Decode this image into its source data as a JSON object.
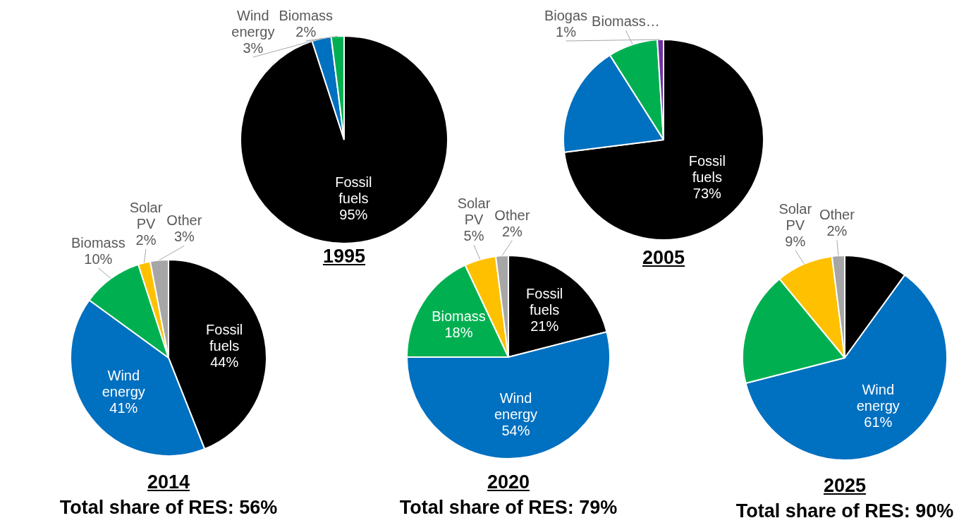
{
  "chart_data": [
    {
      "type": "pie",
      "title": "1995",
      "categories": [
        "Fossil fuels",
        "Wind energy",
        "Biomass"
      ],
      "values": [
        95,
        3,
        2
      ],
      "colors": [
        "#000000",
        "#0070c0",
        "#00b050"
      ],
      "value_labels": [
        "95%",
        "3%",
        "2%"
      ]
    },
    {
      "type": "pie",
      "title": "2005",
      "categories": [
        "Fossil fuels",
        null,
        "Biomass…",
        "Biogas"
      ],
      "values": [
        73,
        18,
        8,
        1
      ],
      "colors": [
        "#000000",
        "#0070c0",
        "#00b050",
        "#7030a0"
      ],
      "value_labels": [
        "73%",
        null,
        null,
        "1%"
      ]
    },
    {
      "type": "pie",
      "title": "2014",
      "subtitle": "Total share of RES: 56%",
      "categories": [
        "Fossil fuels",
        "Wind energy",
        "Biomass",
        "Solar PV",
        "Other"
      ],
      "values": [
        44,
        41,
        10,
        2,
        3
      ],
      "colors": [
        "#000000",
        "#0070c0",
        "#00b050",
        "#ffc000",
        "#a6a6a6"
      ],
      "value_labels": [
        "44%",
        "41%",
        "10%",
        "2%",
        "3%"
      ]
    },
    {
      "type": "pie",
      "title": "2020",
      "subtitle": "Total share of RES: 79%",
      "categories": [
        "Fossil fuels",
        "Wind energy",
        "Biomass",
        "Solar PV",
        "Other"
      ],
      "values": [
        21,
        54,
        18,
        5,
        2
      ],
      "colors": [
        "#000000",
        "#0070c0",
        "#00b050",
        "#ffc000",
        "#a6a6a6"
      ],
      "value_labels": [
        "21%",
        "54%",
        "18%",
        "5%",
        "2%"
      ]
    },
    {
      "type": "pie",
      "title": "2025",
      "subtitle": "Total share of RES: 90%",
      "categories": [
        null,
        "Wind energy",
        null,
        "Solar PV",
        "Other"
      ],
      "values": [
        10,
        61,
        18,
        9,
        2
      ],
      "colors": [
        "#000000",
        "#0070c0",
        "#00b050",
        "#ffc000",
        "#a6a6a6"
      ],
      "value_labels": [
        null,
        "61%",
        null,
        "9%",
        "2%"
      ]
    }
  ]
}
